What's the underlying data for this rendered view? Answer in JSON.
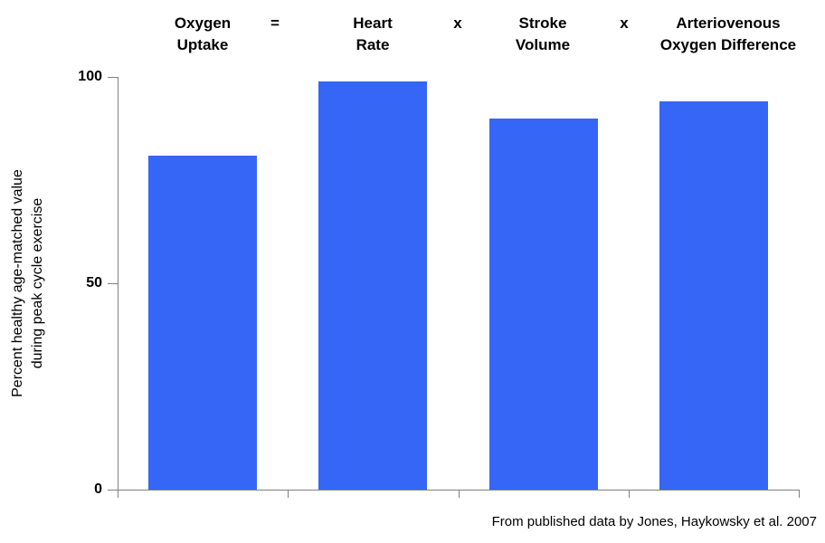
{
  "chart_data": {
    "type": "bar",
    "title_equation": {
      "terms": [
        {
          "line1": "Oxygen",
          "line2": "Uptake"
        },
        {
          "line1": "Heart",
          "line2": "Rate"
        },
        {
          "line1": "Stroke",
          "line2": "Volume"
        },
        {
          "line1": "Arteriovenous",
          "line2": "Oxygen Difference"
        }
      ],
      "separators": [
        "=",
        "x",
        "x"
      ]
    },
    "categories": [
      "Oxygen Uptake",
      "Heart Rate",
      "Stroke Volume",
      "Arteriovenous Oxygen Difference"
    ],
    "values": [
      81,
      99,
      90,
      94
    ],
    "ylabel_line1": "Percent healthy age-matched value",
    "ylabel_line2": "during peak cycle exercise",
    "yticks": [
      0,
      50,
      100
    ],
    "ylim": [
      0,
      100
    ],
    "grid": false,
    "legend": "none",
    "bar_color": "#3666F5",
    "axis_color": "#808080",
    "caption": "From published data by Jones, Haykowsky et al. 2007"
  }
}
